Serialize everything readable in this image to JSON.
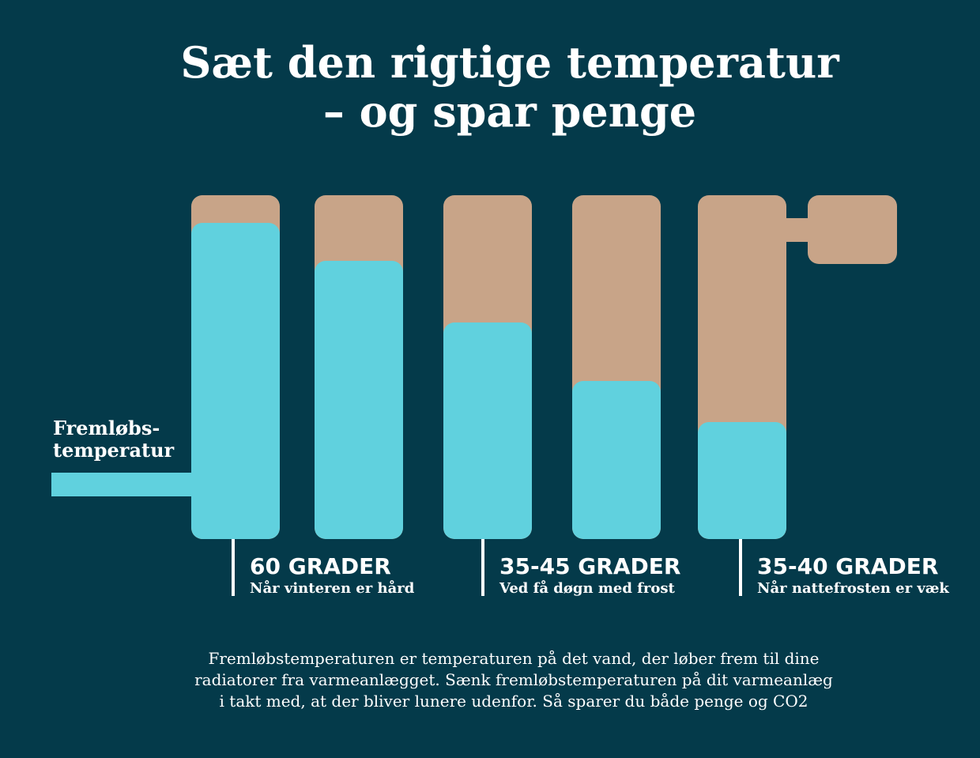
{
  "title": {
    "line1": "Sæt den rigtige temperatur",
    "line2": "– og spar penge"
  },
  "fill_label": {
    "line1": "Fremløbs-",
    "line2": "temperatur"
  },
  "radiator": {
    "columns": [
      {
        "level_fraction": 0.92
      },
      {
        "level_fraction": 0.81
      },
      {
        "level_fraction": 0.63
      },
      {
        "level_fraction": 0.46
      },
      {
        "level_fraction": 0.34
      }
    ]
  },
  "settings": [
    {
      "heading": "60 GRADER",
      "subtitle": "Når vinteren er hård"
    },
    {
      "heading": "35-45 GRADER",
      "subtitle": "Ved få døgn med frost"
    },
    {
      "heading": "35-40 GRADER",
      "subtitle": "Når nattefrosten er væk"
    }
  ],
  "footnote": {
    "line1": "Fremløbstemperaturen er temperaturen på det vand, der løber frem til dine",
    "line2": "radiatorer fra varmeanlægget. Sænk fremløbstemperaturen på dit varmeanlæg",
    "line3": "i takt med, at der bliver lunere udenfor. Så sparer du både penge og CO2"
  },
  "colors": {
    "background": "#043a4a",
    "water": "#60d1de",
    "radiator": "#c8a488",
    "text": "#ffffff"
  }
}
